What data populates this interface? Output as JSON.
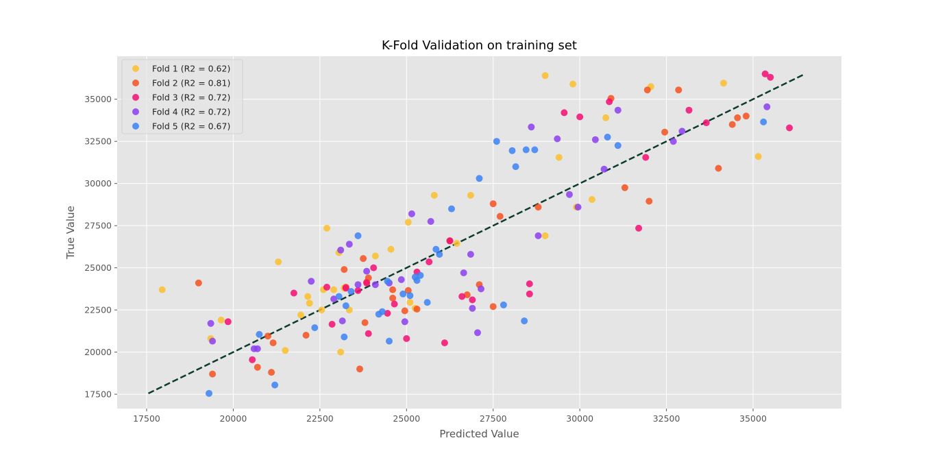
{
  "chart_data": {
    "type": "scatter",
    "title": "K-Fold Validation on training set",
    "xlabel": "Predicted Value",
    "ylabel": "True Value",
    "xlim": [
      16650,
      37550
    ],
    "ylim": [
      16650,
      37550
    ],
    "x_ticks": [
      {
        "value": 17500,
        "label": "17500"
      },
      {
        "value": 20000,
        "label": "20000"
      },
      {
        "value": 22500,
        "label": "22500"
      },
      {
        "value": 25000,
        "label": "25000"
      },
      {
        "value": 27500,
        "label": "27500"
      },
      {
        "value": 30000,
        "label": "30000"
      },
      {
        "value": 32500,
        "label": "32500"
      },
      {
        "value": 35000,
        "label": "35000"
      }
    ],
    "y_ticks": [
      {
        "value": 17500,
        "label": "17500"
      },
      {
        "value": 20000,
        "label": "20000"
      },
      {
        "value": 22500,
        "label": "22500"
      },
      {
        "value": 25000,
        "label": "25000"
      },
      {
        "value": 27500,
        "label": "27500"
      },
      {
        "value": 30000,
        "label": "30000"
      },
      {
        "value": 32500,
        "label": "32500"
      },
      {
        "value": 35000,
        "label": "35000"
      }
    ],
    "grid": true,
    "legend_position": "top-left",
    "background": "#e5e5e5",
    "reference_line": {
      "style": "dashed",
      "color": "#0d3b2e",
      "from": [
        17550,
        17550
      ],
      "to": [
        36500,
        36500
      ]
    },
    "series": [
      {
        "name": "Fold 1 (R2 = 0.62)",
        "color": "#fbc02d",
        "points": [
          [
            17950,
            23700
          ],
          [
            19350,
            20800
          ],
          [
            19650,
            21900
          ],
          [
            21300,
            25350
          ],
          [
            21500,
            20100
          ],
          [
            21950,
            22200
          ],
          [
            22150,
            23300
          ],
          [
            22200,
            22900
          ],
          [
            22550,
            22500
          ],
          [
            22600,
            23700
          ],
          [
            22700,
            27350
          ],
          [
            22900,
            23700
          ],
          [
            23050,
            25900
          ],
          [
            23100,
            20000
          ],
          [
            23200,
            23800
          ],
          [
            23350,
            22500
          ],
          [
            24100,
            25700
          ],
          [
            24550,
            26100
          ],
          [
            25050,
            27700
          ],
          [
            25100,
            22950
          ],
          [
            25250,
            22600
          ],
          [
            25800,
            29300
          ],
          [
            26450,
            26450
          ],
          [
            26850,
            29300
          ],
          [
            29000,
            26900
          ],
          [
            29000,
            36400
          ],
          [
            29400,
            31550
          ],
          [
            29800,
            35900
          ],
          [
            29900,
            28600
          ],
          [
            30350,
            29050
          ],
          [
            30750,
            33900
          ],
          [
            32050,
            35750
          ],
          [
            34150,
            35950
          ],
          [
            35150,
            31600
          ]
        ]
      },
      {
        "name": "Fold 2 (R2 = 0.81)",
        "color": "#f4511e",
        "points": [
          [
            19000,
            24100
          ],
          [
            19400,
            18700
          ],
          [
            20700,
            19100
          ],
          [
            21000,
            20950
          ],
          [
            21100,
            18800
          ],
          [
            21150,
            20550
          ],
          [
            22100,
            21000
          ],
          [
            23200,
            24900
          ],
          [
            23250,
            23850
          ],
          [
            23650,
            19000
          ],
          [
            23750,
            25550
          ],
          [
            23800,
            21750
          ],
          [
            23850,
            24150
          ],
          [
            23900,
            24400
          ],
          [
            24600,
            23700
          ],
          [
            24600,
            23200
          ],
          [
            24950,
            22450
          ],
          [
            25050,
            23650
          ],
          [
            25300,
            22550
          ],
          [
            26250,
            26600
          ],
          [
            26750,
            23400
          ],
          [
            27100,
            24000
          ],
          [
            27500,
            22700
          ],
          [
            27500,
            28800
          ],
          [
            27700,
            28050
          ],
          [
            28800,
            28600
          ],
          [
            30900,
            35050
          ],
          [
            31300,
            29750
          ],
          [
            31950,
            35550
          ],
          [
            32000,
            28950
          ],
          [
            32450,
            33050
          ],
          [
            32850,
            35550
          ],
          [
            34000,
            30900
          ],
          [
            34400,
            33500
          ],
          [
            34550,
            33900
          ],
          [
            34800,
            34000
          ]
        ]
      },
      {
        "name": "Fold 3 (R2 = 0.72)",
        "color": "#f50e73",
        "points": [
          [
            19850,
            21800
          ],
          [
            20550,
            19550
          ],
          [
            21750,
            23500
          ],
          [
            22700,
            23850
          ],
          [
            22850,
            21650
          ],
          [
            23250,
            23800
          ],
          [
            23600,
            23650
          ],
          [
            23850,
            24100
          ],
          [
            23900,
            21100
          ],
          [
            24050,
            25000
          ],
          [
            24450,
            22300
          ],
          [
            24650,
            22850
          ],
          [
            25000,
            20800
          ],
          [
            25300,
            24750
          ],
          [
            25650,
            25350
          ],
          [
            26100,
            20550
          ],
          [
            26250,
            26600
          ],
          [
            26600,
            23300
          ],
          [
            26900,
            23100
          ],
          [
            28550,
            24050
          ],
          [
            28550,
            23450
          ],
          [
            29550,
            34200
          ],
          [
            30000,
            33950
          ],
          [
            30850,
            34850
          ],
          [
            31700,
            27350
          ],
          [
            31900,
            31550
          ],
          [
            33150,
            34350
          ],
          [
            33650,
            33600
          ],
          [
            35350,
            36500
          ],
          [
            35500,
            36300
          ],
          [
            36050,
            33300
          ]
        ]
      },
      {
        "name": "Fold 4 (R2 = 0.72)",
        "color": "#8c3ef0",
        "points": [
          [
            19350,
            21700
          ],
          [
            19400,
            20650
          ],
          [
            20600,
            20200
          ],
          [
            20700,
            20200
          ],
          [
            22250,
            24200
          ],
          [
            22900,
            23150
          ],
          [
            23100,
            26050
          ],
          [
            23150,
            21850
          ],
          [
            23350,
            26400
          ],
          [
            23600,
            24000
          ],
          [
            23850,
            24800
          ],
          [
            24100,
            24000
          ],
          [
            24500,
            24100
          ],
          [
            24850,
            24300
          ],
          [
            24950,
            21800
          ],
          [
            25150,
            28200
          ],
          [
            25700,
            27750
          ],
          [
            26650,
            24700
          ],
          [
            26850,
            25800
          ],
          [
            26900,
            22600
          ],
          [
            27050,
            21150
          ],
          [
            27150,
            23750
          ],
          [
            28600,
            33350
          ],
          [
            28800,
            26900
          ],
          [
            29350,
            32650
          ],
          [
            29700,
            29350
          ],
          [
            29950,
            28600
          ],
          [
            30450,
            32600
          ],
          [
            30700,
            30850
          ],
          [
            31100,
            34350
          ],
          [
            32700,
            32500
          ],
          [
            32950,
            33100
          ],
          [
            35400,
            34550
          ]
        ]
      },
      {
        "name": "Fold 5 (R2 = 0.67)",
        "color": "#3b82f6",
        "points": [
          [
            19300,
            17550
          ],
          [
            20750,
            21050
          ],
          [
            21200,
            18050
          ],
          [
            22350,
            21450
          ],
          [
            23050,
            23300
          ],
          [
            23200,
            20900
          ],
          [
            23250,
            22750
          ],
          [
            23400,
            23600
          ],
          [
            23600,
            26900
          ],
          [
            24200,
            22250
          ],
          [
            24300,
            22400
          ],
          [
            24450,
            24200
          ],
          [
            24500,
            20650
          ],
          [
            24900,
            23450
          ],
          [
            25100,
            23350
          ],
          [
            25250,
            24450
          ],
          [
            25300,
            24250
          ],
          [
            25400,
            24550
          ],
          [
            25600,
            22950
          ],
          [
            25850,
            26100
          ],
          [
            25950,
            25800
          ],
          [
            26300,
            28500
          ],
          [
            27100,
            30300
          ],
          [
            27600,
            32500
          ],
          [
            27800,
            22800
          ],
          [
            28050,
            31950
          ],
          [
            28150,
            31000
          ],
          [
            28400,
            21850
          ],
          [
            28450,
            32000
          ],
          [
            28700,
            32000
          ],
          [
            30800,
            32750
          ],
          [
            31100,
            32250
          ],
          [
            35300,
            33650
          ]
        ]
      }
    ]
  }
}
